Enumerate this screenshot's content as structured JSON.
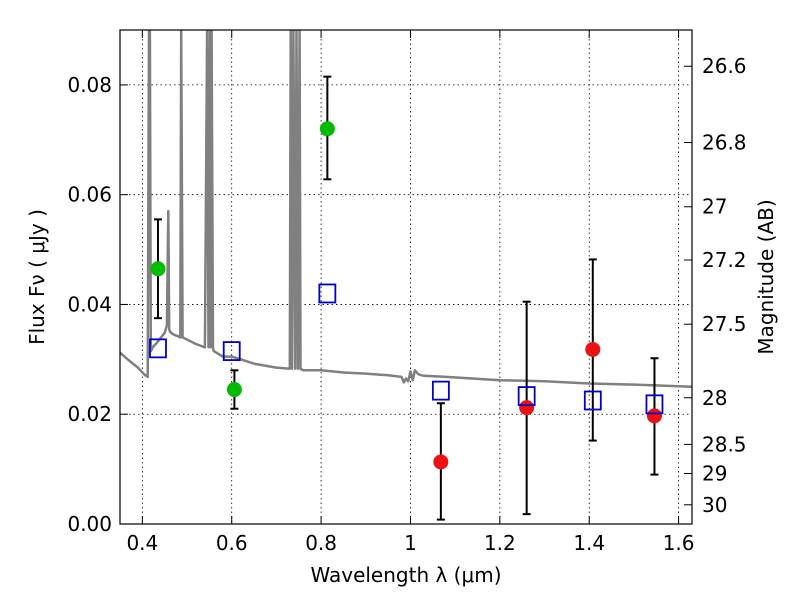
{
  "chart_data": {
    "type": "scatter",
    "xlabel": "Wavelength  λ (μm)",
    "ylabel": "Flux  Fν  ( μJy )",
    "y2label": "Magnitude (AB)",
    "xlim": [
      0.35,
      1.63
    ],
    "ylim": [
      0.0,
      0.09
    ],
    "grid": true,
    "x_ticks": [
      0.4,
      0.6,
      0.8,
      1.0,
      1.2,
      1.4,
      1.6
    ],
    "x_tick_labels": [
      "0.4",
      "0.6",
      "0.8",
      "1",
      "1.2",
      "1.4",
      "1.6"
    ],
    "y_ticks": [
      0.0,
      0.02,
      0.04,
      0.06,
      0.08
    ],
    "y_tick_labels": [
      "0.00",
      "0.02",
      "0.04",
      "0.06",
      "0.08"
    ],
    "y2_ticks": [
      {
        "label": "26.6",
        "flux": 0.0834
      },
      {
        "label": "26.8",
        "flux": 0.0695
      },
      {
        "label": "27",
        "flux": 0.0578
      },
      {
        "label": "27.2",
        "flux": 0.0481
      },
      {
        "label": "27.5",
        "flux": 0.0364
      },
      {
        "label": "28",
        "flux": 0.023
      },
      {
        "label": "28.5",
        "flux": 0.0145
      },
      {
        "label": "29",
        "flux": 0.0092
      },
      {
        "label": "30",
        "flux": 0.0035
      }
    ],
    "series": [
      {
        "marker": "circle",
        "color": "#00bb00",
        "points": [
          {
            "x": 0.435,
            "y": 0.0465,
            "err_lo": 0.0375,
            "err_hi": 0.0555
          },
          {
            "x": 0.606,
            "y": 0.0245,
            "err_lo": 0.021,
            "err_hi": 0.028
          },
          {
            "x": 0.814,
            "y": 0.072,
            "err_lo": 0.0628,
            "err_hi": 0.0815
          }
        ]
      },
      {
        "marker": "circle",
        "color": "#ee1111",
        "points": [
          {
            "x": 1.068,
            "y": 0.0113,
            "err_lo": 0.0008,
            "err_hi": 0.022
          },
          {
            "x": 1.26,
            "y": 0.0212,
            "err_lo": 0.0018,
            "err_hi": 0.0405
          },
          {
            "x": 1.408,
            "y": 0.0318,
            "err_lo": 0.0152,
            "err_hi": 0.0482
          },
          {
            "x": 1.546,
            "y": 0.0197,
            "err_lo": 0.009,
            "err_hi": 0.0302
          }
        ]
      },
      {
        "marker": "open-square",
        "color": "#0000cc",
        "points": [
          {
            "x": 0.435,
            "y": 0.032
          },
          {
            "x": 0.6,
            "y": 0.0315
          },
          {
            "x": 0.814,
            "y": 0.042
          },
          {
            "x": 1.068,
            "y": 0.0243
          },
          {
            "x": 1.26,
            "y": 0.0233
          },
          {
            "x": 1.408,
            "y": 0.0225
          },
          {
            "x": 1.546,
            "y": 0.0218
          }
        ]
      }
    ],
    "model_spectrum": {
      "color": "#808080",
      "x": [
        0.35,
        0.37,
        0.39,
        0.405,
        0.412,
        0.415,
        0.417,
        0.419,
        0.421,
        0.423,
        0.43,
        0.44,
        0.45,
        0.455,
        0.458,
        0.46,
        0.462,
        0.47,
        0.48,
        0.485,
        0.487,
        0.49,
        0.5,
        0.52,
        0.54,
        0.545,
        0.548,
        0.551,
        0.553,
        0.555,
        0.558,
        0.56,
        0.58,
        0.6,
        0.62,
        0.65,
        0.7,
        0.73,
        0.732,
        0.735,
        0.738,
        0.742,
        0.745,
        0.748,
        0.752,
        0.754,
        0.756,
        0.76,
        0.8,
        0.85,
        0.9,
        0.95,
        0.98,
        0.985,
        0.99,
        0.995,
        1.0,
        1.005,
        1.01,
        1.015,
        1.02,
        1.03,
        1.08,
        1.12,
        1.2,
        1.3,
        1.4,
        1.5,
        1.6,
        1.63
      ],
      "y": [
        0.0312,
        0.0298,
        0.0285,
        0.0272,
        0.0268,
        0.09,
        0.09,
        0.0315,
        0.0318,
        0.0322,
        0.0328,
        0.0338,
        0.0348,
        0.0362,
        0.057,
        0.0355,
        0.035,
        0.0345,
        0.0342,
        0.034,
        0.09,
        0.034,
        0.0336,
        0.0328,
        0.0322,
        0.09,
        0.0322,
        0.09,
        0.0322,
        0.09,
        0.032,
        0.0315,
        0.0305,
        0.0305,
        0.03,
        0.0292,
        0.0285,
        0.0283,
        0.09,
        0.0283,
        0.09,
        0.0283,
        0.09,
        0.0283,
        0.09,
        0.0282,
        0.0282,
        0.028,
        0.028,
        0.0276,
        0.0274,
        0.0271,
        0.0268,
        0.0258,
        0.0265,
        0.026,
        0.0278,
        0.0262,
        0.028,
        0.0275,
        0.0272,
        0.027,
        0.0268,
        0.0266,
        0.0262,
        0.026,
        0.0256,
        0.0254,
        0.0251,
        0.025
      ]
    }
  }
}
